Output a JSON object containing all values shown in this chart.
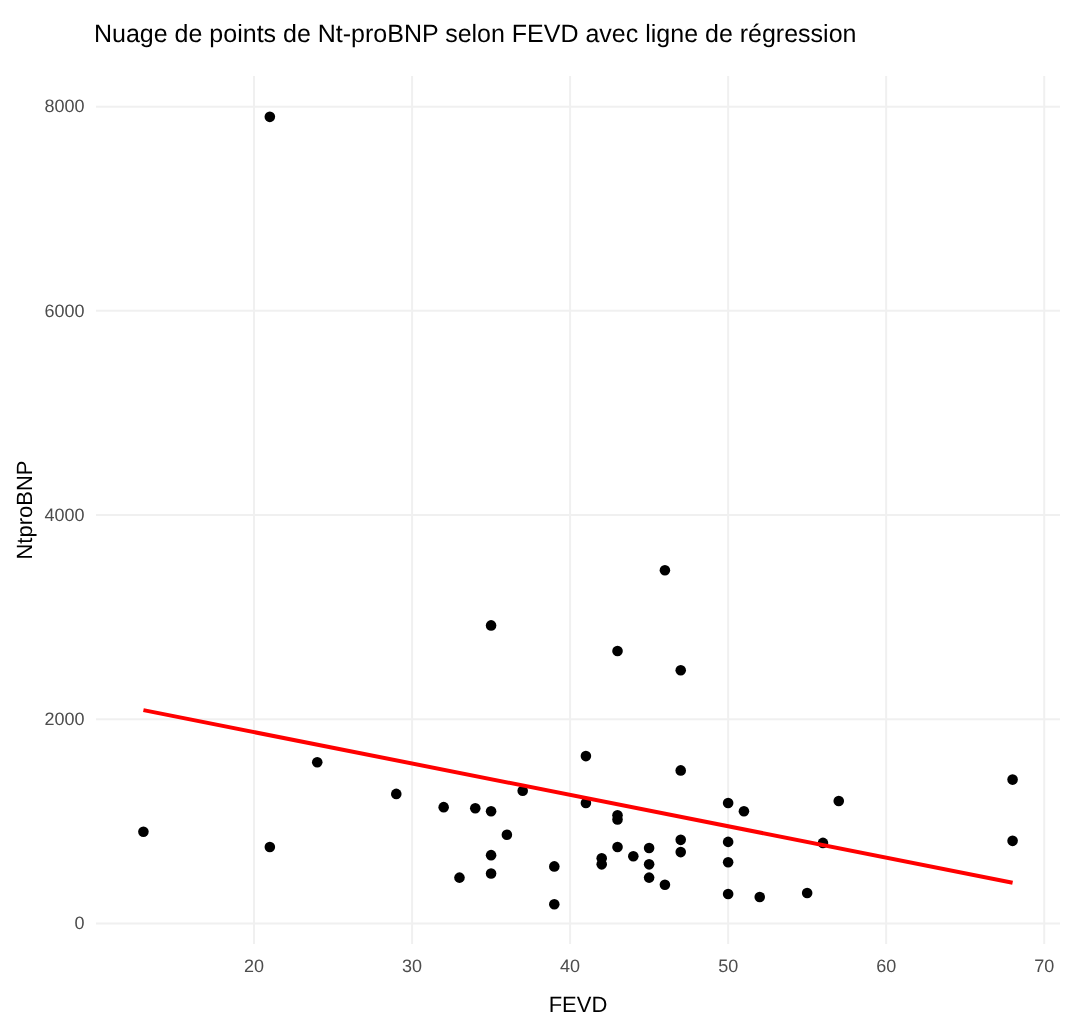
{
  "chart_data": {
    "type": "scatter",
    "title": "Nuage de points de Nt-proBNP selon FEVD avec ligne de régression",
    "xlabel": "FEVD",
    "ylabel": "NtproBNP",
    "xlim": [
      10,
      71
    ],
    "ylim": [
      -200,
      8300
    ],
    "xticks": [
      20,
      30,
      40,
      50,
      60,
      70
    ],
    "yticks": [
      0,
      2000,
      4000,
      6000,
      8000
    ],
    "grid": true,
    "series": [
      {
        "type": "scatter",
        "marker": "circle",
        "color": "#000000",
        "x": [
          21,
          13,
          21,
          24,
          29,
          32,
          34,
          35,
          35,
          36,
          35,
          35,
          33,
          37,
          39,
          39,
          46,
          43,
          47,
          41,
          47,
          68,
          41,
          50,
          51,
          57,
          43,
          43,
          47,
          47,
          43,
          45,
          42,
          42,
          44,
          45,
          45,
          46,
          50,
          50,
          50,
          52,
          55,
          56,
          68
        ],
        "values": [
          7900,
          900,
          750,
          1580,
          1270,
          1140,
          1130,
          1100,
          2920,
          870,
          670,
          490,
          450,
          1300,
          560,
          190,
          3460,
          2670,
          2480,
          1640,
          1500,
          1410,
          1180,
          1180,
          1100,
          1200,
          1060,
          1020,
          820,
          700,
          750,
          740,
          640,
          580,
          660,
          580,
          450,
          380,
          800,
          600,
          290,
          260,
          300,
          790,
          810
        ]
      },
      {
        "type": "line",
        "color": "#ff0000",
        "x": [
          13,
          68
        ],
        "values": [
          2090,
          400
        ]
      }
    ]
  }
}
